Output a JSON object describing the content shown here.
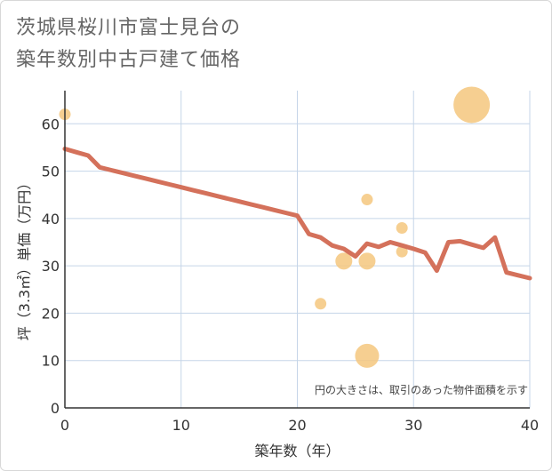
{
  "title": {
    "line1": "茨城県桜川市富士見台の",
    "line2": "築年数別中古戸建て価格"
  },
  "chart_data": {
    "type": "scatter+line",
    "xlabel": "築年数（年）",
    "ylabel": "坪（3.3㎡）単価（万円）",
    "xlim": [
      0,
      40
    ],
    "ylim": [
      0,
      67
    ],
    "xticks": [
      0,
      10,
      20,
      30,
      40
    ],
    "yticks": [
      0,
      10,
      20,
      30,
      40,
      50,
      60
    ],
    "grid": true,
    "note": "円の大きさは、取引のあった物件面積を示す",
    "colors": {
      "line": "#d4715b",
      "bubble": "#f5c77e",
      "grid": "#c5d5e8",
      "axis": "#333333"
    },
    "trend_line": {
      "x": [
        0,
        1,
        2,
        3,
        4,
        5,
        6,
        7,
        8,
        9,
        10,
        11,
        12,
        13,
        14,
        15,
        16,
        17,
        18,
        19,
        20,
        21,
        22,
        23,
        24,
        25,
        26,
        27,
        28,
        29,
        30,
        31,
        32,
        33,
        34,
        35,
        36,
        37,
        38,
        39,
        40
      ],
      "y": [
        54.7,
        54.0,
        53.3,
        50.8,
        50.2,
        49.6,
        49.0,
        48.4,
        47.8,
        47.2,
        46.6,
        46.0,
        45.4,
        44.8,
        44.2,
        43.6,
        43.0,
        42.4,
        41.8,
        41.2,
        40.6,
        36.7,
        36.0,
        34.3,
        33.6,
        32.0,
        34.7,
        34.0,
        35.0,
        34.3,
        33.6,
        32.8,
        29.0,
        35.0,
        35.2,
        34.5,
        33.8,
        36.0,
        28.6,
        28.0,
        27.4
      ]
    },
    "bubbles": [
      {
        "x": 0,
        "y": 62,
        "size": "small"
      },
      {
        "x": 22,
        "y": 22,
        "size": "small"
      },
      {
        "x": 24,
        "y": 31,
        "size": "medium"
      },
      {
        "x": 26,
        "y": 44,
        "size": "small"
      },
      {
        "x": 26,
        "y": 31,
        "size": "medium"
      },
      {
        "x": 26,
        "y": 11,
        "size": "large"
      },
      {
        "x": 29,
        "y": 38,
        "size": "small"
      },
      {
        "x": 29,
        "y": 33,
        "size": "small"
      },
      {
        "x": 35,
        "y": 64,
        "size": "xlarge"
      }
    ]
  }
}
